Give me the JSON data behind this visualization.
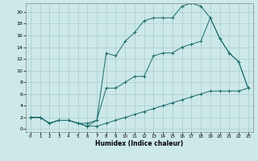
{
  "xlabel": "Humidex (Indice chaleur)",
  "bg_color": "#cce8e8",
  "line_color": "#1a6b6b",
  "grid_color": "#aacccc",
  "xlim": [
    -0.5,
    23.5
  ],
  "ylim": [
    -0.5,
    21.5
  ],
  "xticks": [
    0,
    1,
    2,
    3,
    4,
    5,
    6,
    7,
    8,
    9,
    10,
    11,
    12,
    13,
    14,
    15,
    16,
    17,
    18,
    19,
    20,
    21,
    22,
    23
  ],
  "yticks": [
    0,
    2,
    4,
    6,
    8,
    10,
    12,
    14,
    16,
    18,
    20
  ],
  "line1_x": [
    0,
    1,
    2,
    3,
    4,
    5,
    6,
    7,
    8,
    9,
    10,
    11,
    12,
    13,
    14,
    15,
    16,
    17,
    18,
    19,
    20,
    21,
    22,
    23
  ],
  "line1_y": [
    2,
    2,
    1,
    1.5,
    1.5,
    1,
    0.5,
    0.5,
    1,
    1.5,
    2,
    2.5,
    3,
    3.5,
    4,
    4.5,
    5,
    5.5,
    6,
    6.5,
    6.5,
    6.5,
    6.5,
    7
  ],
  "line2_x": [
    0,
    1,
    2,
    3,
    4,
    5,
    6,
    7,
    8,
    9,
    10,
    11,
    12,
    13,
    14,
    15,
    16,
    17,
    18,
    19,
    20,
    21,
    22,
    23
  ],
  "line2_y": [
    2,
    2,
    1,
    1.5,
    1.5,
    1,
    1,
    1.5,
    7,
    7,
    8,
    9,
    9,
    12.5,
    13,
    13,
    14,
    14.5,
    15,
    19,
    15.5,
    13,
    11.5,
    7
  ],
  "line3_x": [
    0,
    1,
    2,
    3,
    4,
    5,
    6,
    7,
    8,
    9,
    10,
    11,
    12,
    13,
    14,
    15,
    16,
    17,
    18,
    19,
    20,
    21,
    22,
    23
  ],
  "line3_y": [
    2,
    2,
    1,
    1.5,
    1.5,
    1,
    0.5,
    1.5,
    13,
    12.5,
    15,
    16.5,
    18.5,
    19,
    19,
    19,
    21,
    21.5,
    21,
    19,
    15.5,
    13,
    11.5,
    7
  ]
}
